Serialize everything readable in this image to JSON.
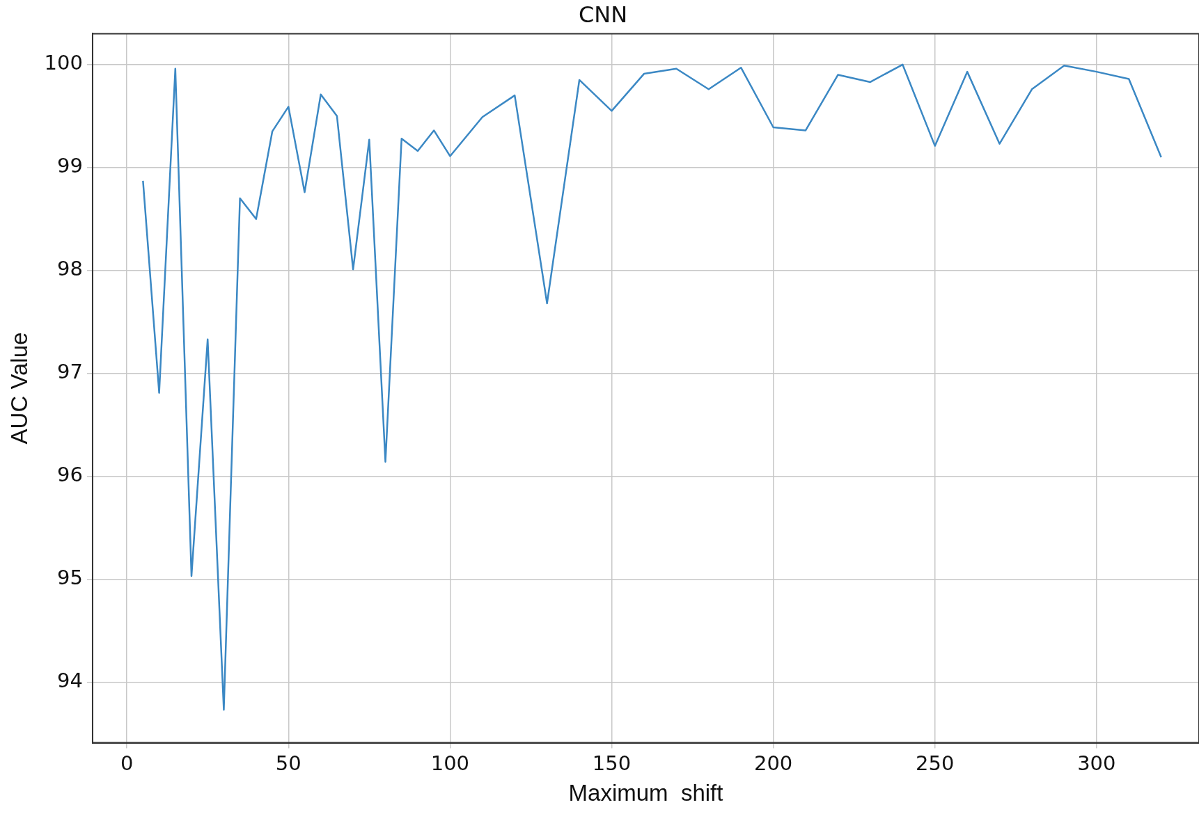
{
  "chart_data": {
    "type": "line",
    "title": "CNN",
    "xlabel": "Maximum  shift",
    "ylabel": "AUC Value",
    "x": [
      5,
      10,
      15,
      20,
      25,
      30,
      35,
      40,
      45,
      50,
      55,
      60,
      65,
      70,
      75,
      80,
      85,
      90,
      95,
      100,
      110,
      120,
      130,
      140,
      150,
      160,
      170,
      180,
      190,
      200,
      210,
      220,
      230,
      240,
      250,
      260,
      270,
      280,
      290,
      300,
      310,
      320
    ],
    "series": [
      {
        "color": "#3b88c4",
        "values": [
          98.87,
          96.81,
          99.96,
          95.03,
          97.33,
          93.73,
          98.7,
          98.5,
          99.35,
          99.59,
          98.76,
          99.71,
          99.5,
          98.01,
          99.27,
          96.14,
          99.28,
          99.16,
          99.36,
          99.11,
          99.49,
          99.7,
          97.68,
          99.85,
          99.55,
          99.91,
          99.96,
          99.76,
          99.97,
          99.39,
          99.36,
          99.9,
          99.83,
          100.0,
          99.21,
          99.93,
          99.23,
          99.76,
          99.99,
          99.93,
          99.86,
          99.1
        ]
      }
    ],
    "xlim": [
      -10.6,
      331.7
    ],
    "ylim": [
      93.41,
      100.3
    ],
    "xticks": [
      0,
      50,
      100,
      150,
      200,
      250,
      300
    ],
    "yticks": [
      94,
      95,
      96,
      97,
      98,
      99,
      100
    ],
    "grid": true,
    "legend": false,
    "marker": "none",
    "line_style": "solid"
  }
}
